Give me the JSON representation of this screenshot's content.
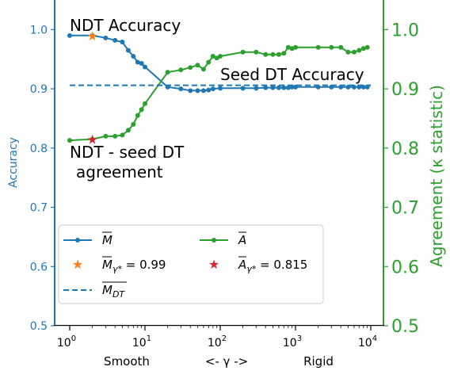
{
  "chart_data": {
    "type": "line",
    "x_scale": "log",
    "xlim": [
      1,
      10000
    ],
    "x_ticks": [
      {
        "value": 1,
        "base": "10",
        "exp": "0"
      },
      {
        "value": 10,
        "base": "10",
        "exp": "1"
      },
      {
        "value": 100,
        "base": "10",
        "exp": "2"
      },
      {
        "value": 1000,
        "base": "10",
        "exp": "3"
      },
      {
        "value": 10000,
        "base": "10",
        "exp": "4"
      }
    ],
    "x_words": {
      "left": "Smooth",
      "center": "<- γ ->",
      "right": "Rigid"
    },
    "y_left": {
      "label": "Accuracy",
      "ylim": [
        0.5,
        1.05
      ],
      "ticks": [
        "0.5",
        "0.6",
        "0.7",
        "0.8",
        "0.9",
        "1.0"
      ],
      "color": "#1f77b4"
    },
    "y_right": {
      "label": "Agreement (κ statistic)",
      "ylim": [
        0.5,
        1.05
      ],
      "ticks": [
        "0.5",
        "0.6",
        "0.7",
        "0.8",
        "0.9",
        "1.0"
      ],
      "color": "#2ca02c"
    },
    "series": [
      {
        "name": "M̄",
        "axis": "left",
        "color": "#1f77b4",
        "points": [
          [
            1,
            0.99
          ],
          [
            2,
            0.99
          ],
          [
            3,
            0.986
          ],
          [
            4,
            0.982
          ],
          [
            5,
            0.979
          ],
          [
            6,
            0.965
          ],
          [
            7,
            0.955
          ],
          [
            8,
            0.945
          ],
          [
            9,
            0.943
          ],
          [
            10,
            0.937
          ],
          [
            20,
            0.903
          ],
          [
            30,
            0.9
          ],
          [
            40,
            0.897
          ],
          [
            50,
            0.897
          ],
          [
            60,
            0.897
          ],
          [
            70,
            0.898
          ],
          [
            80,
            0.9
          ],
          [
            100,
            0.901
          ],
          [
            200,
            0.901
          ],
          [
            300,
            0.901
          ],
          [
            400,
            0.902
          ],
          [
            500,
            0.902
          ],
          [
            600,
            0.902
          ],
          [
            700,
            0.902
          ],
          [
            800,
            0.902
          ],
          [
            900,
            0.903
          ],
          [
            1000,
            0.903
          ],
          [
            2000,
            0.903
          ],
          [
            3000,
            0.903
          ],
          [
            4000,
            0.903
          ],
          [
            5000,
            0.903
          ],
          [
            6000,
            0.903
          ],
          [
            7000,
            0.903
          ],
          [
            8000,
            0.903
          ],
          [
            9000,
            0.903
          ]
        ]
      },
      {
        "name": "Ā",
        "axis": "right",
        "color": "#2ca02c",
        "points": [
          [
            1,
            0.813
          ],
          [
            2,
            0.815
          ],
          [
            3,
            0.82
          ],
          [
            4,
            0.82
          ],
          [
            5,
            0.822
          ],
          [
            6,
            0.83
          ],
          [
            7,
            0.84
          ],
          [
            8,
            0.855
          ],
          [
            9,
            0.865
          ],
          [
            10,
            0.875
          ],
          [
            20,
            0.928
          ],
          [
            30,
            0.932
          ],
          [
            40,
            0.936
          ],
          [
            50,
            0.94
          ],
          [
            60,
            0.933
          ],
          [
            70,
            0.945
          ],
          [
            80,
            0.955
          ],
          [
            90,
            0.952
          ],
          [
            100,
            0.955
          ],
          [
            200,
            0.962
          ],
          [
            300,
            0.962
          ],
          [
            400,
            0.958
          ],
          [
            500,
            0.958
          ],
          [
            600,
            0.958
          ],
          [
            700,
            0.96
          ],
          [
            800,
            0.97
          ],
          [
            900,
            0.968
          ],
          [
            1000,
            0.97
          ],
          [
            2000,
            0.97
          ],
          [
            3000,
            0.97
          ],
          [
            4000,
            0.97
          ],
          [
            5000,
            0.962
          ],
          [
            6000,
            0.962
          ],
          [
            7000,
            0.965
          ],
          [
            8000,
            0.968
          ],
          [
            9000,
            0.97
          ]
        ]
      },
      {
        "name": "M̄_DT",
        "axis": "left",
        "color": "#1f77b4",
        "style": "dashed",
        "value": 0.906
      }
    ],
    "markers": [
      {
        "name": "M̄_γ* = 0.99",
        "x": 2,
        "y": 0.99,
        "axis": "left",
        "color": "#ff7f0e"
      },
      {
        "name": "Ā_γ* = 0.815",
        "x": 2,
        "y": 0.815,
        "axis": "right",
        "color": "#d62728"
      }
    ],
    "annotations": [
      {
        "text": "NDT Accuracy"
      },
      {
        "text": "Seed DT Accuracy"
      },
      {
        "text": "NDT - seed DT"
      },
      {
        "text": "agreement"
      }
    ],
    "legend": {
      "position": "lower-left",
      "entries": [
        {
          "label_main": "M",
          "label_sub": "",
          "suffix": ""
        },
        {
          "label_main": "A",
          "label_sub": "",
          "suffix": ""
        },
        {
          "label_main": "M",
          "label_sub": "γ*",
          "suffix": " = 0.99"
        },
        {
          "label_main": "A",
          "label_sub": "γ*",
          "suffix": " = 0.815"
        },
        {
          "label_main": "M",
          "label_sub": "DT",
          "suffix": ""
        }
      ]
    }
  }
}
